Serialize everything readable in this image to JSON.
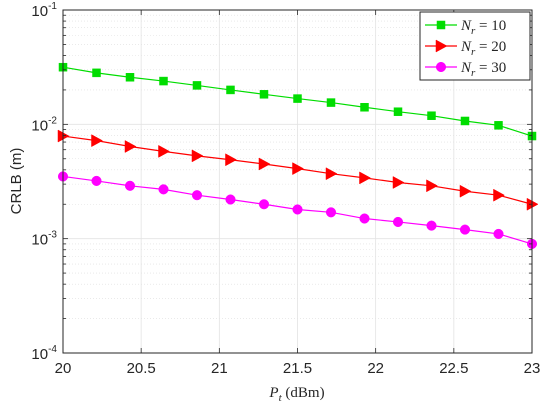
{
  "chart_data": {
    "type": "line",
    "title": "",
    "xlabel": {
      "symbol": "P",
      "sub": "t",
      "unit": " (dBm)"
    },
    "ylabel": "CRLB (m)",
    "xlim": [
      20,
      23
    ],
    "ylim": [
      0.0001,
      0.1
    ],
    "yscale": "log",
    "grid": true,
    "minor_grid": true,
    "legend_position": "top-right",
    "x_ticks": [
      "20",
      "20.5",
      "21",
      "21.5",
      "22",
      "22.5",
      "23"
    ],
    "y_ticks": [
      {
        "base": "10",
        "exp": "-1"
      },
      {
        "base": "10",
        "exp": "-2"
      },
      {
        "base": "10",
        "exp": "-3"
      },
      {
        "base": "10",
        "exp": "-4"
      }
    ],
    "x": [
      20.0,
      20.2143,
      20.4286,
      20.6429,
      20.8571,
      21.0714,
      21.2857,
      21.5,
      21.7143,
      21.9286,
      22.1429,
      22.3571,
      22.5714,
      22.7857,
      23.0
    ],
    "series": [
      {
        "name": {
          "sym": "N",
          "sub": "r",
          "rest": " = 10"
        },
        "color": "#00dd00",
        "marker": "square",
        "values": [
          0.0316,
          0.0282,
          0.0258,
          0.0239,
          0.0219,
          0.02,
          0.0183,
          0.0168,
          0.0155,
          0.0141,
          0.0129,
          0.0119,
          0.0107,
          0.0098,
          0.0079
        ]
      },
      {
        "name": {
          "sym": "N",
          "sub": "r",
          "rest": " = 20"
        },
        "color": "#ff0000",
        "marker": "triangle-right",
        "values": [
          0.0079,
          0.0072,
          0.0064,
          0.0058,
          0.0053,
          0.0049,
          0.0045,
          0.0041,
          0.0037,
          0.0034,
          0.0031,
          0.0029,
          0.0026,
          0.0024,
          0.002
        ]
      },
      {
        "name": {
          "sym": "N",
          "sub": "r",
          "rest": " = 30"
        },
        "color": "#ff00ff",
        "marker": "circle",
        "values": [
          0.0035,
          0.0032,
          0.0029,
          0.0027,
          0.0024,
          0.0022,
          0.002,
          0.0018,
          0.0017,
          0.0015,
          0.0014,
          0.0013,
          0.0012,
          0.0011,
          0.0009
        ]
      }
    ]
  }
}
